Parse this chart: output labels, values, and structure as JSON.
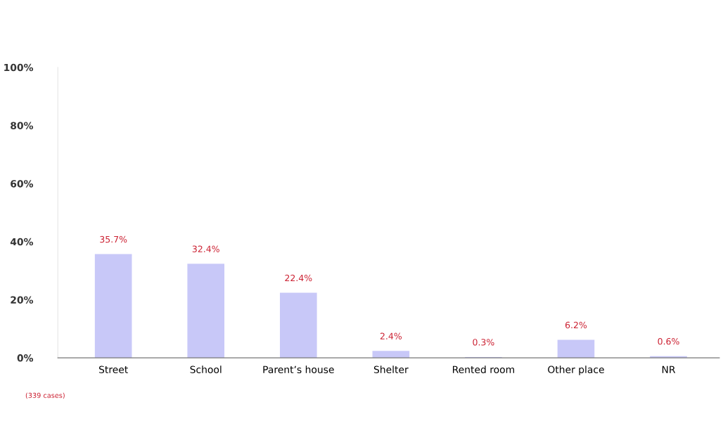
{
  "chart_data": {
    "type": "bar",
    "categories": [
      "Street",
      "School",
      "Parent’s house",
      "Shelter",
      "Rented room",
      "Other place",
      "NR"
    ],
    "values": [
      35.7,
      32.4,
      22.4,
      2.4,
      0.3,
      6.2,
      0.6
    ],
    "value_labels": [
      "35.7%",
      "32.4%",
      "22.4%",
      "2.4%",
      "0.3%",
      "6.2%",
      "0.6%"
    ],
    "color": "#c8c8f8",
    "ylim": [
      0,
      100
    ],
    "yticks": [
      {
        "value": 0,
        "label": "0%"
      },
      {
        "value": 20,
        "label": "20%"
      },
      {
        "value": 40,
        "label": "40%"
      },
      {
        "value": 60,
        "label": "60%"
      },
      {
        "value": 80,
        "label": "80%"
      },
      {
        "value": 100,
        "label": "100%"
      }
    ],
    "grid": false,
    "legend": false,
    "annotations": [
      "(339 cases)"
    ]
  }
}
